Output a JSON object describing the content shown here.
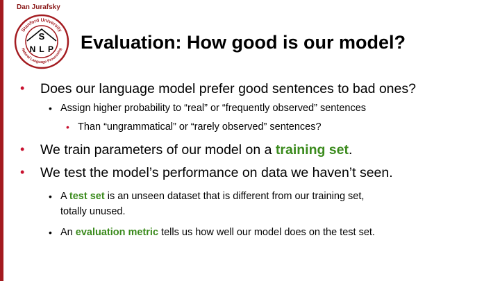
{
  "header": {
    "author": "Dan Jurafsky",
    "title": "Evaluation: How good is our model?"
  },
  "logo": {
    "top_text": "Stanford University",
    "bottom_text": "Natural Language Processing",
    "letters": {
      "s": "S",
      "n": "N",
      "l": "L",
      "p": "P"
    }
  },
  "bullets": {
    "b1": "Does our language model prefer good sentences to bad ones?",
    "b1_1": "Assign higher probability to “real” or “frequently observed” sentences",
    "b1_1_1": "Than “ungrammatical” or “rarely observed” sentences?",
    "b2_pre": "We train parameters of our model on a ",
    "b2_hl": "training set",
    "b2_post": ".",
    "b3": "We test the model’s performance on data we haven’t seen.",
    "b3_1_pre": "A ",
    "b3_1_hl": "test set",
    "b3_1_post": " is an unseen dataset that is different from our training set,",
    "b3_1_line2": "totally unused.",
    "b3_2_pre": "An ",
    "b3_2_hl": "evaluation metric",
    "b3_2_post": " tells us how well our model does on the test set."
  },
  "colors": {
    "accent_red": "#c8102e",
    "highlight_green": "#3a8a1c",
    "bar_red": "#a31a1f"
  }
}
